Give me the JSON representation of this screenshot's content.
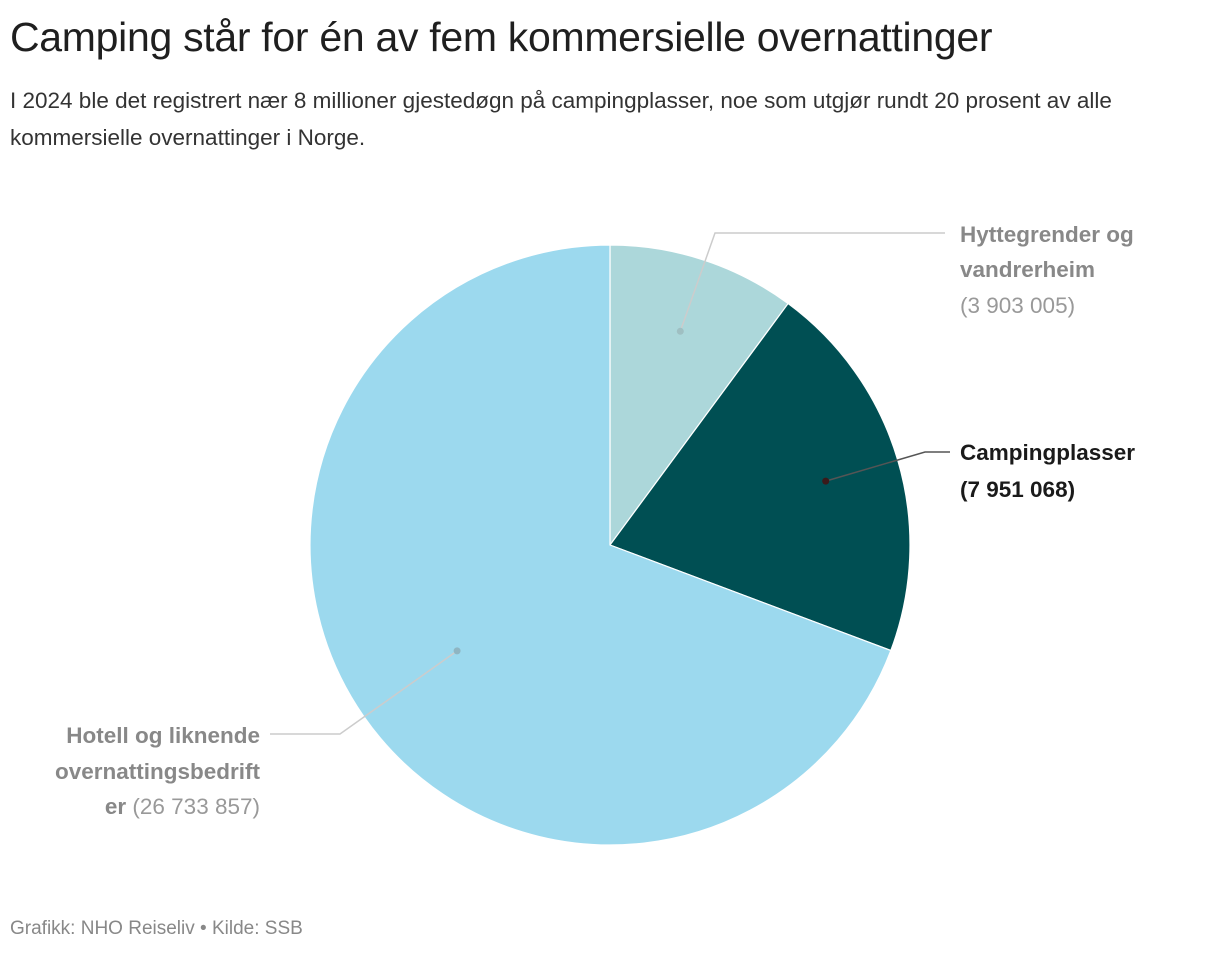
{
  "header": {
    "title": "Camping står for én av fem kommersielle overnattinger",
    "subtitle": "I 2024 ble det registrert nær 8 millioner gjestedøgn på campingplasser, noe som utgjør rundt 20 prosent av alle kommersielle overnattinger i Norge."
  },
  "chart_data": {
    "type": "pie",
    "title": "Camping står for én av fem kommersielle overnattinger",
    "subtitle": "I 2024 ble det registrert nær 8 millioner gjestedøgn på campingplasser, noe som utgjør rundt 20 prosent av alle kommersielle overnattinger i Norge.",
    "slices": [
      {
        "name": "Hyttegrender og vandrerheim",
        "value": 3903005,
        "value_label": "(3 903 005)",
        "color": "#acd7da",
        "highlighted": false
      },
      {
        "name": "Campingplasser",
        "value": 7951068,
        "value_label": "(7 951 068)",
        "color": "#004f53",
        "highlighted": true
      },
      {
        "name": "Hotell og liknende overnattingsbedrifter",
        "value": 26733857,
        "value_label": "(26 733 857)",
        "color": "#9cd9ee",
        "highlighted": false
      }
    ],
    "start_angle": "12 o'clock",
    "direction": "clockwise",
    "legend": "none (direct labels)"
  },
  "labels": {
    "hytte": {
      "line1": "Hyttegrender og",
      "line2": "vandrerheim",
      "value": "(3 903 005)"
    },
    "camping": {
      "line1": "Campingplasser",
      "value": "(7 951 068)"
    },
    "hotell": {
      "line1": "Hotell og liknende",
      "line2": "overnattingsbedrift",
      "line3": "er",
      "value": "(26 733 857)"
    }
  },
  "footer": {
    "text": "Grafikk: NHO Reiseliv • Kilde: SSB"
  },
  "colors": {
    "label_muted": "#888888",
    "label_value_muted": "#999999",
    "label_highlight": "#1a1a1a",
    "leader_line": "#cccccc",
    "leader_line_highlight": "#555555"
  }
}
